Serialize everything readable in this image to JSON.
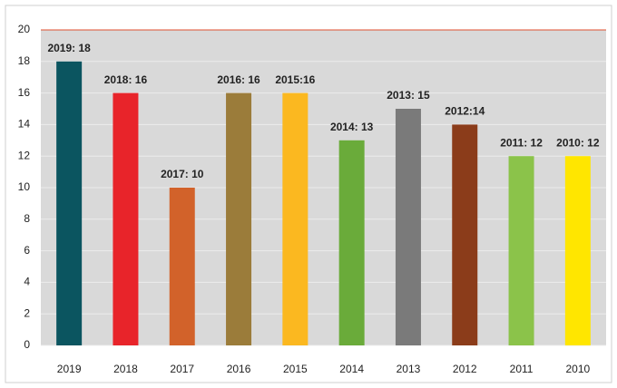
{
  "chart_data": {
    "type": "bar",
    "categories": [
      "2019",
      "2018",
      "2017",
      "2016",
      "2015",
      "2014",
      "2013",
      "2012",
      "2011",
      "2010"
    ],
    "values": [
      18,
      16,
      10,
      16,
      16,
      13,
      15,
      14,
      12,
      12
    ],
    "value_labels": [
      "2019: 18",
      "2018: 16",
      "2017: 10",
      "2016: 16",
      "2015:16",
      "2014: 13",
      "2013: 15",
      "2012:14",
      "2011: 12",
      "2010: 12"
    ],
    "colors": [
      "#0b5560",
      "#e8242a",
      "#d2622a",
      "#9b7c3a",
      "#fbb820",
      "#6aab3a",
      "#7a7a7a",
      "#8b3c1a",
      "#8bc34a",
      "#ffe600"
    ],
    "ylim": [
      0,
      20
    ],
    "yticks": [
      0,
      2,
      4,
      6,
      8,
      10,
      12,
      14,
      16,
      18,
      20
    ],
    "grid": true
  }
}
